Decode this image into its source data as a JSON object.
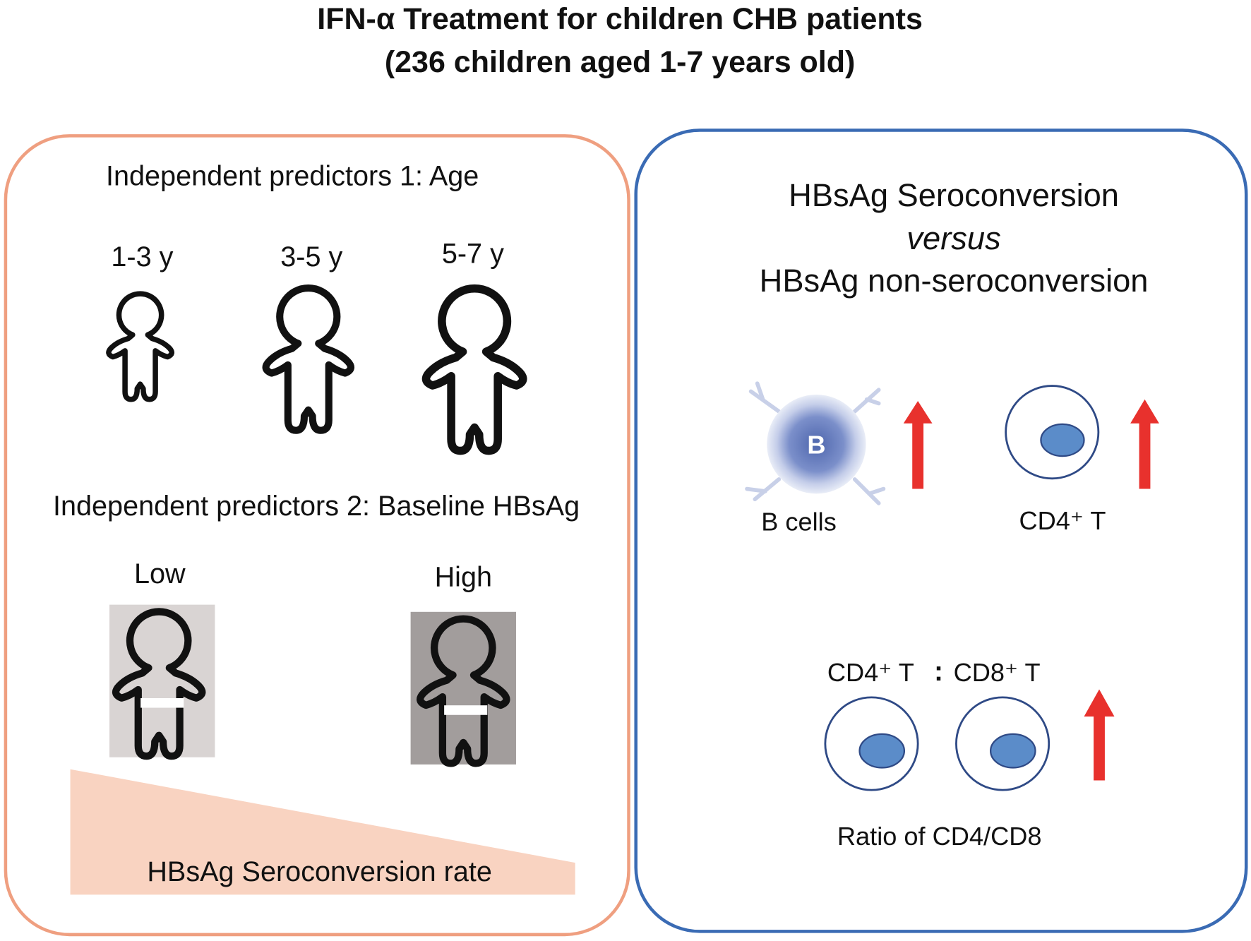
{
  "title": [
    "IFN-α Treatment for children CHB patients",
    "(236 children aged 1-7 years old)"
  ],
  "left_panel": {
    "predictor_1": "Independent predictors 1: Age",
    "age_groups": [
      "1-3 y",
      "3-5 y",
      "5-7 y"
    ],
    "predictor_2": "Independent predictors 2: Baseline HBsAg",
    "levels": [
      "Low",
      "High"
    ],
    "outcome": "HBsAg Seroconversion rate"
  },
  "right_panel": {
    "heading": [
      "HBsAg Seroconversion",
      "versus",
      "HBsAg non-seroconversion"
    ],
    "b_label": "B",
    "cells": [
      "B cells",
      "CD4⁺ T"
    ],
    "ratio_cells": [
      "CD4⁺ T",
      "CD8⁺ T"
    ],
    "ratio_separator": ":",
    "ratio_caption": "Ratio of CD4/CD8"
  }
}
